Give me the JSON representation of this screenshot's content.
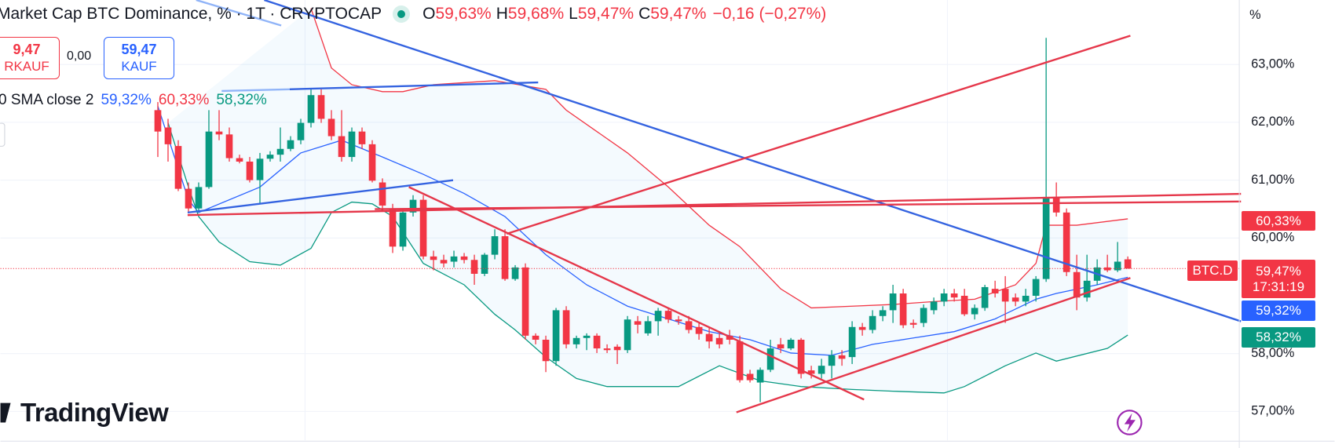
{
  "header": {
    "title": "Market Cap BTC Dominance, % · 1T · CRYPTOCAP",
    "ohlc": [
      {
        "key": "O",
        "value": "59,63%"
      },
      {
        "key": "H",
        "value": "59,68%"
      },
      {
        "key": "L",
        "value": "59,47%"
      },
      {
        "key": "C",
        "value": "59,47%"
      }
    ],
    "change": "−0,16 (−0,27%)"
  },
  "trade": {
    "sell_price": "9,47",
    "sell_label": "RKAUF",
    "spread": "0,00",
    "buy_price": "59,47",
    "buy_label": "KAUF"
  },
  "indicator": {
    "name": "0 SMA close 2",
    "values": [
      "59,32%",
      "60,33%",
      "58,32%"
    ]
  },
  "price_scale": {
    "upper": "60,33%",
    "symbol": "BTC.D",
    "last": "59,47%",
    "countdown": "17:31:19",
    "middle": "59,32%",
    "lower": "58,32%"
  },
  "brand": "TradingView",
  "chart_data": {
    "type": "candlestick",
    "y_unit": "%",
    "grid": true,
    "up_color": "#089981",
    "down_color": "#f23645",
    "ylim": [
      56.5,
      64.1
    ],
    "yticks": [
      {
        "value": 57,
        "label": "57,00%"
      },
      {
        "value": 58,
        "label": "58,00%"
      },
      {
        "value": 60,
        "label": "60,00%"
      },
      {
        "value": 61,
        "label": "61,00%"
      },
      {
        "value": 62,
        "label": "62,00%"
      },
      {
        "value": 63,
        "label": "63,00%"
      }
    ],
    "candles": [
      {
        "o": 62.21,
        "h": 62.35,
        "l": 61.4,
        "c": 61.84
      },
      {
        "o": 61.91,
        "h": 62.06,
        "l": 61.32,
        "c": 61.62
      },
      {
        "o": 61.59,
        "h": 61.69,
        "l": 60.81,
        "c": 60.85
      },
      {
        "o": 60.85,
        "h": 60.96,
        "l": 60.44,
        "c": 60.51
      },
      {
        "o": 60.51,
        "h": 60.96,
        "l": 60.44,
        "c": 60.88
      },
      {
        "o": 60.88,
        "h": 62.21,
        "l": 60.85,
        "c": 61.84
      },
      {
        "o": 61.84,
        "h": 62.21,
        "l": 61.69,
        "c": 61.79
      },
      {
        "o": 61.79,
        "h": 61.91,
        "l": 61.32,
        "c": 61.38
      },
      {
        "o": 61.38,
        "h": 61.44,
        "l": 61.29,
        "c": 61.32
      },
      {
        "o": 61.32,
        "h": 61.4,
        "l": 60.96,
        "c": 61.0
      },
      {
        "o": 61.0,
        "h": 61.47,
        "l": 60.59,
        "c": 61.37
      },
      {
        "o": 61.37,
        "h": 61.5,
        "l": 61.32,
        "c": 61.44
      },
      {
        "o": 61.44,
        "h": 61.91,
        "l": 61.32,
        "c": 61.54
      },
      {
        "o": 61.54,
        "h": 61.76,
        "l": 61.5,
        "c": 61.69
      },
      {
        "o": 61.69,
        "h": 62.06,
        "l": 61.62,
        "c": 61.99
      },
      {
        "o": 61.99,
        "h": 62.57,
        "l": 61.91,
        "c": 62.47
      },
      {
        "o": 62.47,
        "h": 62.57,
        "l": 61.99,
        "c": 62.06
      },
      {
        "o": 62.06,
        "h": 62.21,
        "l": 61.69,
        "c": 61.76
      },
      {
        "o": 61.76,
        "h": 62.21,
        "l": 61.32,
        "c": 61.4
      },
      {
        "o": 61.4,
        "h": 61.91,
        "l": 61.32,
        "c": 61.84
      },
      {
        "o": 61.84,
        "h": 61.91,
        "l": 61.54,
        "c": 61.62
      },
      {
        "o": 61.62,
        "h": 61.69,
        "l": 60.96,
        "c": 60.99
      },
      {
        "o": 60.96,
        "h": 61.03,
        "l": 60.47,
        "c": 60.56
      },
      {
        "o": 60.51,
        "h": 60.59,
        "l": 59.74,
        "c": 59.85
      },
      {
        "o": 59.85,
        "h": 60.51,
        "l": 59.78,
        "c": 60.44
      },
      {
        "o": 60.44,
        "h": 60.74,
        "l": 60.37,
        "c": 60.66
      },
      {
        "o": 60.66,
        "h": 60.74,
        "l": 59.63,
        "c": 59.68
      },
      {
        "o": 59.68,
        "h": 59.78,
        "l": 59.44,
        "c": 59.62
      },
      {
        "o": 59.62,
        "h": 59.71,
        "l": 59.49,
        "c": 59.56
      },
      {
        "o": 59.59,
        "h": 59.78,
        "l": 59.49,
        "c": 59.68
      },
      {
        "o": 59.68,
        "h": 59.74,
        "l": 59.56,
        "c": 59.62
      },
      {
        "o": 59.62,
        "h": 59.71,
        "l": 59.19,
        "c": 59.38
      },
      {
        "o": 59.38,
        "h": 59.74,
        "l": 59.34,
        "c": 59.71
      },
      {
        "o": 59.71,
        "h": 60.15,
        "l": 59.63,
        "c": 60.03
      },
      {
        "o": 60.03,
        "h": 60.15,
        "l": 59.26,
        "c": 59.29
      },
      {
        "o": 59.29,
        "h": 59.53,
        "l": 59.26,
        "c": 59.49
      },
      {
        "o": 59.49,
        "h": 59.56,
        "l": 58.24,
        "c": 58.31
      },
      {
        "o": 58.31,
        "h": 58.35,
        "l": 58.16,
        "c": 58.24
      },
      {
        "o": 58.24,
        "h": 58.31,
        "l": 57.68,
        "c": 57.87
      },
      {
        "o": 57.87,
        "h": 58.79,
        "l": 57.79,
        "c": 58.75
      },
      {
        "o": 58.75,
        "h": 58.82,
        "l": 58.09,
        "c": 58.16
      },
      {
        "o": 58.16,
        "h": 58.31,
        "l": 58.09,
        "c": 58.27
      },
      {
        "o": 58.27,
        "h": 58.35,
        "l": 58.06,
        "c": 58.31
      },
      {
        "o": 58.31,
        "h": 58.35,
        "l": 58.01,
        "c": 58.09
      },
      {
        "o": 58.09,
        "h": 58.16,
        "l": 58.01,
        "c": 58.06
      },
      {
        "o": 58.12,
        "h": 58.16,
        "l": 57.82,
        "c": 58.06
      },
      {
        "o": 58.06,
        "h": 58.65,
        "l": 58.01,
        "c": 58.59
      },
      {
        "o": 58.56,
        "h": 58.65,
        "l": 58.35,
        "c": 58.5
      },
      {
        "o": 58.35,
        "h": 58.65,
        "l": 58.31,
        "c": 58.56
      },
      {
        "o": 58.56,
        "h": 58.79,
        "l": 58.31,
        "c": 58.74
      },
      {
        "o": 58.74,
        "h": 58.79,
        "l": 58.53,
        "c": 58.59
      },
      {
        "o": 58.59,
        "h": 58.65,
        "l": 58.5,
        "c": 58.56
      },
      {
        "o": 58.56,
        "h": 58.65,
        "l": 58.35,
        "c": 58.41
      },
      {
        "o": 58.46,
        "h": 58.53,
        "l": 58.24,
        "c": 58.34
      },
      {
        "o": 58.34,
        "h": 58.46,
        "l": 58.09,
        "c": 58.21
      },
      {
        "o": 58.27,
        "h": 58.35,
        "l": 58.09,
        "c": 58.16
      },
      {
        "o": 58.31,
        "h": 58.41,
        "l": 58.16,
        "c": 58.24
      },
      {
        "o": 58.21,
        "h": 58.31,
        "l": 57.5,
        "c": 57.54
      },
      {
        "o": 57.65,
        "h": 57.72,
        "l": 57.5,
        "c": 57.54
      },
      {
        "o": 57.5,
        "h": 57.76,
        "l": 57.16,
        "c": 57.72
      },
      {
        "o": 57.72,
        "h": 58.24,
        "l": 57.68,
        "c": 58.09
      },
      {
        "o": 58.16,
        "h": 58.27,
        "l": 58.01,
        "c": 58.09
      },
      {
        "o": 58.09,
        "h": 58.27,
        "l": 58.06,
        "c": 58.24
      },
      {
        "o": 58.24,
        "h": 58.27,
        "l": 57.57,
        "c": 57.65
      },
      {
        "o": 57.71,
        "h": 57.79,
        "l": 57.57,
        "c": 57.65
      },
      {
        "o": 57.65,
        "h": 57.91,
        "l": 57.57,
        "c": 57.79
      },
      {
        "o": 57.79,
        "h": 58.06,
        "l": 57.57,
        "c": 57.97
      },
      {
        "o": 57.97,
        "h": 58.06,
        "l": 57.79,
        "c": 57.91
      },
      {
        "o": 57.94,
        "h": 58.56,
        "l": 57.82,
        "c": 58.46
      },
      {
        "o": 58.46,
        "h": 58.53,
        "l": 58.31,
        "c": 58.41
      },
      {
        "o": 58.41,
        "h": 58.75,
        "l": 58.35,
        "c": 58.65
      },
      {
        "o": 58.65,
        "h": 58.82,
        "l": 58.56,
        "c": 58.75
      },
      {
        "o": 58.75,
        "h": 59.19,
        "l": 58.53,
        "c": 59.04
      },
      {
        "o": 59.04,
        "h": 59.12,
        "l": 58.44,
        "c": 58.49
      },
      {
        "o": 58.53,
        "h": 58.59,
        "l": 58.44,
        "c": 58.5
      },
      {
        "o": 58.53,
        "h": 58.85,
        "l": 58.46,
        "c": 58.79
      },
      {
        "o": 58.75,
        "h": 58.97,
        "l": 58.68,
        "c": 58.9
      },
      {
        "o": 58.9,
        "h": 59.12,
        "l": 58.82,
        "c": 59.04
      },
      {
        "o": 59.04,
        "h": 59.12,
        "l": 58.9,
        "c": 58.97
      },
      {
        "o": 59.0,
        "h": 59.12,
        "l": 58.65,
        "c": 58.68
      },
      {
        "o": 58.68,
        "h": 58.85,
        "l": 58.59,
        "c": 58.79
      },
      {
        "o": 58.79,
        "h": 59.19,
        "l": 58.74,
        "c": 59.15
      },
      {
        "o": 59.12,
        "h": 59.26,
        "l": 58.97,
        "c": 59.04
      },
      {
        "o": 59.12,
        "h": 59.34,
        "l": 58.53,
        "c": 58.9
      },
      {
        "o": 58.97,
        "h": 59.04,
        "l": 58.82,
        "c": 58.9
      },
      {
        "o": 58.9,
        "h": 59.12,
        "l": 58.82,
        "c": 59.0
      },
      {
        "o": 59.0,
        "h": 59.34,
        "l": 58.9,
        "c": 59.29
      },
      {
        "o": 59.29,
        "h": 63.46,
        "l": 59.24,
        "c": 60.71
      },
      {
        "o": 60.71,
        "h": 60.96,
        "l": 60.37,
        "c": 60.44
      },
      {
        "o": 60.44,
        "h": 60.51,
        "l": 59.34,
        "c": 59.41
      },
      {
        "o": 59.41,
        "h": 59.71,
        "l": 58.75,
        "c": 58.97
      },
      {
        "o": 58.97,
        "h": 59.71,
        "l": 58.9,
        "c": 59.26
      },
      {
        "o": 59.26,
        "h": 59.63,
        "l": 59.19,
        "c": 59.49
      },
      {
        "o": 59.49,
        "h": 59.71,
        "l": 59.41,
        "c": 59.44
      },
      {
        "o": 59.44,
        "h": 59.93,
        "l": 59.41,
        "c": 59.59
      },
      {
        "o": 59.63,
        "h": 59.68,
        "l": 59.47,
        "c": 59.47
      }
    ],
    "bands": [
      {
        "color": "#f23645",
        "x": [
          15,
          17,
          19,
          22,
          24,
          27,
          33,
          38,
          40,
          43,
          46,
          50,
          54,
          57,
          61,
          64,
          68,
          72,
          76,
          80,
          84,
          86,
          87,
          90,
          95
        ],
        "values": [
          63.97,
          62.94,
          62.65,
          62.53,
          62.53,
          62.65,
          62.72,
          62.57,
          62.21,
          61.84,
          61.47,
          60.88,
          60.22,
          59.85,
          59.12,
          58.79,
          58.82,
          58.85,
          58.9,
          58.94,
          59.19,
          59.56,
          60.22,
          60.22,
          60.33
        ]
      },
      {
        "color": "#2962ff",
        "x": [
          0,
          3,
          4,
          10,
          14,
          18,
          22,
          26,
          30,
          34,
          38,
          42,
          46,
          50,
          54,
          58,
          62,
          66,
          70,
          74,
          78,
          82,
          86,
          88,
          92,
          95
        ],
        "values": [
          62.28,
          60.66,
          60.44,
          60.88,
          61.47,
          61.69,
          61.4,
          61.1,
          60.77,
          60.37,
          59.71,
          59.19,
          58.82,
          58.6,
          58.38,
          58.24,
          58.01,
          57.97,
          58.16,
          58.27,
          58.38,
          58.6,
          58.94,
          59.04,
          59.19,
          59.32
        ]
      },
      {
        "color": "#089981",
        "x": [
          1,
          3,
          4,
          6,
          9,
          12,
          15,
          17,
          19,
          21,
          23,
          26,
          30,
          33,
          35,
          38,
          41,
          44,
          51,
          55,
          59,
          63,
          68,
          72,
          77,
          79,
          83,
          86,
          88,
          93,
          95
        ],
        "values": [
          61.99,
          60.88,
          60.37,
          59.93,
          59.59,
          59.53,
          59.82,
          60.44,
          60.62,
          60.59,
          60.37,
          59.56,
          59.19,
          58.68,
          58.41,
          57.94,
          57.57,
          57.43,
          57.43,
          57.79,
          57.53,
          57.43,
          57.38,
          57.35,
          57.32,
          57.43,
          57.79,
          58.01,
          57.87,
          58.09,
          58.32
        ]
      }
    ]
  }
}
